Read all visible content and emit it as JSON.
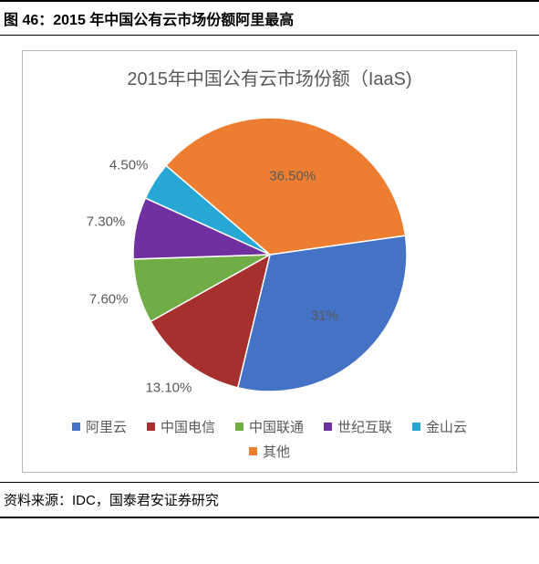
{
  "figure": {
    "header": "图 46：2015 年中国公有云市场份额阿里最高",
    "source_label": "资料来源：IDC，国泰君安证券研究"
  },
  "chart": {
    "type": "pie",
    "title": "2015年中国公有云市场份额（IaaS)",
    "title_fontsize": 20,
    "title_color": "#595959",
    "background_color": "#ffffff",
    "border_color": "#b7b7b7",
    "label_fontsize": 15,
    "label_color": "#595959",
    "pie_radius": 150,
    "start_angle_deg": -8,
    "direction": "clockwise",
    "slice_border_color": "#ffffff",
    "slice_border_width": 1.5,
    "slices": [
      {
        "name": "阿里云",
        "value": 31.0,
        "label": "31%",
        "color": "#4472c4"
      },
      {
        "name": "中国电信",
        "value": 13.1,
        "label": "13.10%",
        "color": "#a5302e"
      },
      {
        "name": "中国联通",
        "value": 7.6,
        "label": "7.60%",
        "color": "#70ad47"
      },
      {
        "name": "世纪互联",
        "value": 7.3,
        "label": "7.30%",
        "color": "#7030a0"
      },
      {
        "name": "金山云",
        "value": 4.5,
        "label": "4.50%",
        "color": "#26a7d4"
      },
      {
        "name": "其他",
        "value": 36.5,
        "label": "36.50%",
        "color": "#ed7d31"
      }
    ],
    "legend": {
      "position": "bottom",
      "fontsize": 15,
      "color": "#595959",
      "swatch_size": 9
    }
  }
}
